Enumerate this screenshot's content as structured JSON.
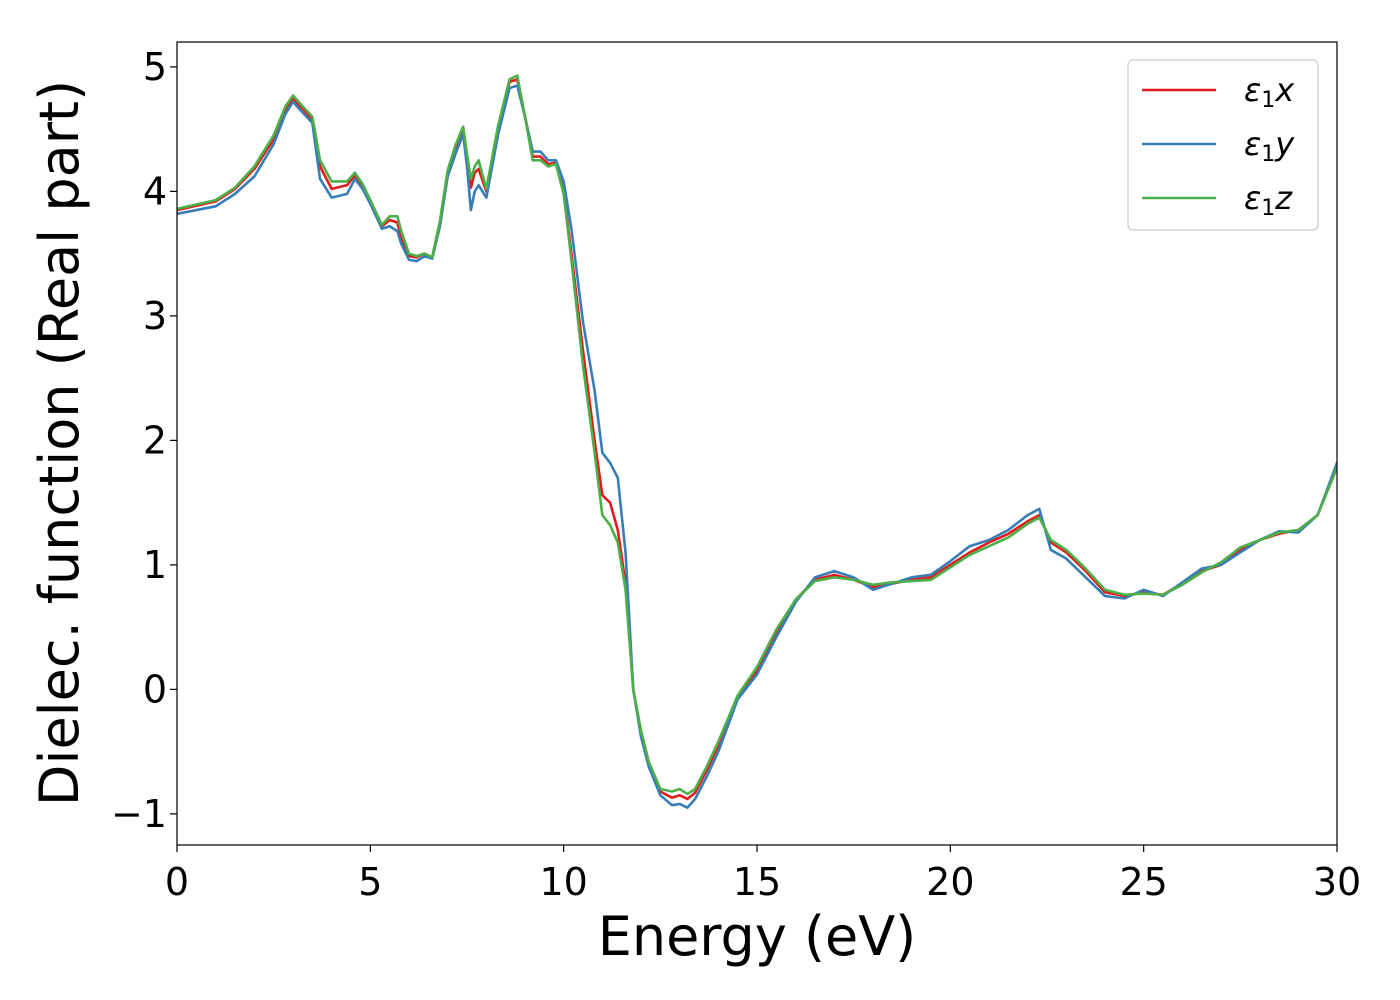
{
  "chart_data": {
    "type": "line",
    "title": "",
    "xlabel": "Energy (eV)",
    "ylabel": "Dielec. function (Real part)",
    "xlim": [
      0,
      30
    ],
    "ylim": [
      -1.25,
      5.2
    ],
    "xticks": [
      0,
      5,
      10,
      15,
      20,
      25,
      30
    ],
    "xtick_labels": [
      "0",
      "5",
      "10",
      "15",
      "20",
      "25",
      "30"
    ],
    "yticks": [
      -1,
      0,
      1,
      2,
      3,
      4,
      5
    ],
    "ytick_labels": [
      "−1",
      "0",
      "1",
      "2",
      "3",
      "4",
      "5"
    ],
    "grid": false,
    "legend_position": "top-right",
    "series": [
      {
        "name": "ε₁x",
        "legend_base": "ε",
        "legend_sub": "1",
        "legend_var": "x",
        "color": "#e41a1c",
        "x": [
          0,
          1,
          1.5,
          2,
          2.5,
          2.8,
          3.0,
          3.2,
          3.5,
          3.7,
          4.0,
          4.4,
          4.6,
          4.8,
          5.0,
          5.3,
          5.5,
          5.7,
          5.8,
          6.0,
          6.2,
          6.4,
          6.6,
          6.8,
          7.0,
          7.2,
          7.4,
          7.5,
          7.6,
          7.7,
          7.8,
          8.0,
          8.3,
          8.6,
          8.8,
          9.0,
          9.2,
          9.4,
          9.6,
          9.8,
          10.0,
          10.2,
          10.5,
          10.8,
          11.0,
          11.2,
          11.4,
          11.6,
          11.8,
          12.0,
          12.2,
          12.5,
          12.8,
          13.0,
          13.2,
          13.4,
          13.7,
          14.0,
          14.5,
          15.0,
          15.5,
          16.0,
          16.5,
          17.0,
          17.5,
          18.0,
          18.5,
          19.0,
          19.5,
          20.0,
          20.5,
          21.0,
          21.5,
          22.0,
          22.3,
          22.6,
          23.0,
          23.5,
          24.0,
          24.5,
          25.0,
          25.5,
          26.0,
          26.5,
          27.0,
          27.5,
          28.0,
          28.5,
          29.0,
          29.5,
          30.0
        ],
        "y": [
          3.85,
          3.92,
          4.02,
          4.18,
          4.42,
          4.65,
          4.75,
          4.68,
          4.58,
          4.2,
          4.02,
          4.05,
          4.13,
          4.05,
          3.92,
          3.72,
          3.77,
          3.75,
          3.62,
          3.48,
          3.47,
          3.5,
          3.47,
          3.75,
          4.15,
          4.35,
          4.5,
          4.28,
          4.03,
          4.15,
          4.18,
          4.0,
          4.5,
          4.88,
          4.9,
          4.6,
          4.28,
          4.28,
          4.22,
          4.23,
          4.0,
          3.5,
          2.72,
          2.0,
          1.56,
          1.5,
          1.28,
          0.85,
          0.0,
          -0.35,
          -0.6,
          -0.82,
          -0.87,
          -0.85,
          -0.88,
          -0.83,
          -0.65,
          -0.45,
          -0.05,
          0.15,
          0.45,
          0.72,
          0.88,
          0.92,
          0.88,
          0.82,
          0.85,
          0.88,
          0.9,
          1.0,
          1.1,
          1.18,
          1.25,
          1.35,
          1.4,
          1.18,
          1.1,
          0.95,
          0.78,
          0.75,
          0.78,
          0.76,
          0.85,
          0.95,
          1.0,
          1.12,
          1.2,
          1.25,
          1.28,
          1.4,
          1.8
        ]
      },
      {
        "name": "ε₁y",
        "legend_base": "ε",
        "legend_sub": "1",
        "legend_var": "y",
        "color": "#377eb8",
        "x": [
          0,
          1,
          1.5,
          2,
          2.5,
          2.8,
          3.0,
          3.2,
          3.5,
          3.7,
          4.0,
          4.4,
          4.6,
          4.8,
          5.0,
          5.3,
          5.5,
          5.7,
          5.8,
          6.0,
          6.2,
          6.4,
          6.6,
          6.8,
          7.0,
          7.2,
          7.4,
          7.5,
          7.6,
          7.7,
          7.8,
          8.0,
          8.3,
          8.6,
          8.8,
          9.0,
          9.2,
          9.4,
          9.6,
          9.8,
          10.0,
          10.2,
          10.5,
          10.8,
          11.0,
          11.2,
          11.4,
          11.6,
          11.8,
          12.0,
          12.2,
          12.5,
          12.8,
          13.0,
          13.2,
          13.4,
          13.7,
          14.0,
          14.5,
          15.0,
          15.5,
          16.0,
          16.5,
          17.0,
          17.5,
          18.0,
          18.5,
          19.0,
          19.5,
          20.0,
          20.5,
          21.0,
          21.5,
          22.0,
          22.3,
          22.6,
          23.0,
          23.5,
          24.0,
          24.5,
          25.0,
          25.5,
          26.0,
          26.5,
          27.0,
          27.5,
          28.0,
          28.5,
          29.0,
          29.5,
          30.0
        ],
        "y": [
          3.82,
          3.88,
          3.98,
          4.12,
          4.38,
          4.62,
          4.72,
          4.65,
          4.55,
          4.1,
          3.95,
          3.98,
          4.1,
          4.02,
          3.9,
          3.7,
          3.72,
          3.68,
          3.58,
          3.45,
          3.44,
          3.48,
          3.46,
          3.72,
          4.12,
          4.3,
          4.46,
          4.2,
          3.85,
          4.0,
          4.05,
          3.95,
          4.45,
          4.83,
          4.85,
          4.6,
          4.32,
          4.32,
          4.25,
          4.25,
          4.08,
          3.7,
          2.95,
          2.4,
          1.9,
          1.82,
          1.7,
          1.1,
          0.0,
          -0.38,
          -0.62,
          -0.85,
          -0.93,
          -0.92,
          -0.95,
          -0.88,
          -0.7,
          -0.5,
          -0.08,
          0.12,
          0.42,
          0.7,
          0.9,
          0.95,
          0.9,
          0.8,
          0.85,
          0.9,
          0.92,
          1.03,
          1.15,
          1.2,
          1.28,
          1.4,
          1.45,
          1.12,
          1.05,
          0.9,
          0.75,
          0.73,
          0.8,
          0.75,
          0.86,
          0.97,
          1.0,
          1.1,
          1.2,
          1.27,
          1.26,
          1.4,
          1.82
        ]
      },
      {
        "name": "ε₁z",
        "legend_base": "ε",
        "legend_sub": "1",
        "legend_var": "z",
        "color": "#4daf4a",
        "x": [
          0,
          1,
          1.5,
          2,
          2.5,
          2.8,
          3.0,
          3.2,
          3.5,
          3.7,
          4.0,
          4.4,
          4.6,
          4.8,
          5.0,
          5.3,
          5.5,
          5.7,
          5.8,
          6.0,
          6.2,
          6.4,
          6.6,
          6.8,
          7.0,
          7.2,
          7.4,
          7.5,
          7.6,
          7.7,
          7.8,
          8.0,
          8.3,
          8.6,
          8.8,
          9.0,
          9.2,
          9.4,
          9.6,
          9.8,
          10.0,
          10.2,
          10.5,
          10.8,
          11.0,
          11.2,
          11.4,
          11.6,
          11.8,
          12.0,
          12.2,
          12.5,
          12.8,
          13.0,
          13.2,
          13.4,
          13.7,
          14.0,
          14.5,
          15.0,
          15.5,
          16.0,
          16.5,
          17.0,
          17.5,
          18.0,
          18.5,
          19.0,
          19.5,
          20.0,
          20.5,
          21.0,
          21.5,
          22.0,
          22.3,
          22.6,
          23.0,
          23.5,
          24.0,
          24.5,
          25.0,
          25.5,
          26.0,
          26.5,
          27.0,
          27.5,
          28.0,
          28.5,
          29.0,
          29.5,
          30.0
        ],
        "y": [
          3.86,
          3.93,
          4.03,
          4.2,
          4.45,
          4.68,
          4.77,
          4.7,
          4.6,
          4.25,
          4.08,
          4.08,
          4.15,
          4.06,
          3.93,
          3.73,
          3.8,
          3.8,
          3.68,
          3.5,
          3.48,
          3.5,
          3.47,
          3.76,
          4.17,
          4.37,
          4.52,
          4.3,
          4.1,
          4.2,
          4.25,
          4.02,
          4.52,
          4.9,
          4.93,
          4.6,
          4.25,
          4.25,
          4.2,
          4.22,
          3.98,
          3.45,
          2.6,
          1.9,
          1.4,
          1.32,
          1.18,
          0.8,
          0.0,
          -0.33,
          -0.58,
          -0.8,
          -0.82,
          -0.8,
          -0.84,
          -0.8,
          -0.62,
          -0.42,
          -0.05,
          0.18,
          0.48,
          0.72,
          0.87,
          0.9,
          0.88,
          0.84,
          0.86,
          0.87,
          0.88,
          0.98,
          1.08,
          1.15,
          1.22,
          1.33,
          1.38,
          1.2,
          1.12,
          0.97,
          0.8,
          0.76,
          0.77,
          0.76,
          0.84,
          0.94,
          1.02,
          1.14,
          1.2,
          1.26,
          1.28,
          1.4,
          1.78
        ]
      }
    ]
  }
}
